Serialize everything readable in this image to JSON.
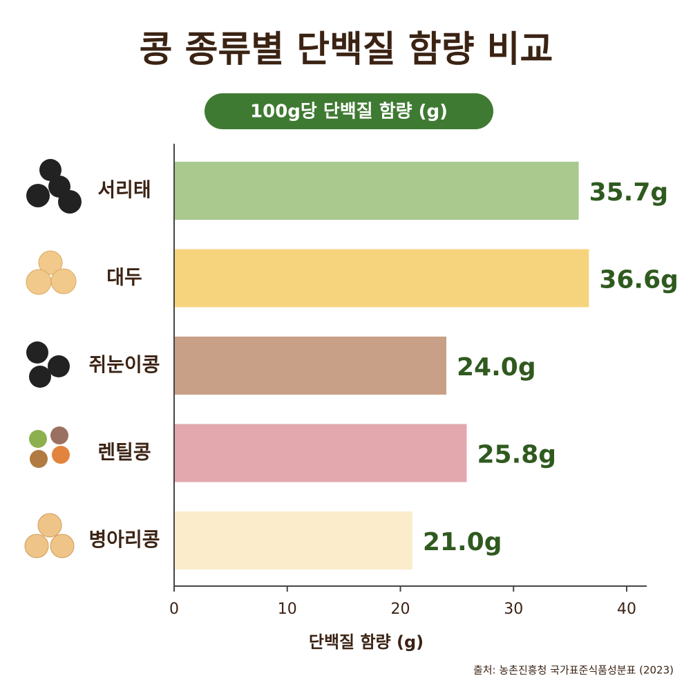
{
  "chart_data": {
    "type": "bar",
    "orientation": "horizontal",
    "title": "콩 종류별 단백질 함량 비교",
    "subtitle": "100g당 단백질 함량 (g)",
    "x_label": "단백질 함량 (g)",
    "source": "출처: 농촌진흥청 국가표준식품성분표 (2023)",
    "categories": [
      "서리태",
      "대두",
      "쥐눈이콩",
      "렌틸콩",
      "병아리콩"
    ],
    "values": [
      35.7,
      36.6,
      24.0,
      25.8,
      21.0
    ],
    "value_labels": [
      "35.7g",
      "36.6g",
      "24.0g",
      "25.8g",
      "21.0g"
    ],
    "colors": [
      "#a9c98f",
      "#f6d47e",
      "#c8a088",
      "#e2a8ae",
      "#fbeccb"
    ],
    "xlim": [
      0,
      40
    ],
    "xticks": [
      0,
      10,
      20,
      30,
      40
    ]
  }
}
